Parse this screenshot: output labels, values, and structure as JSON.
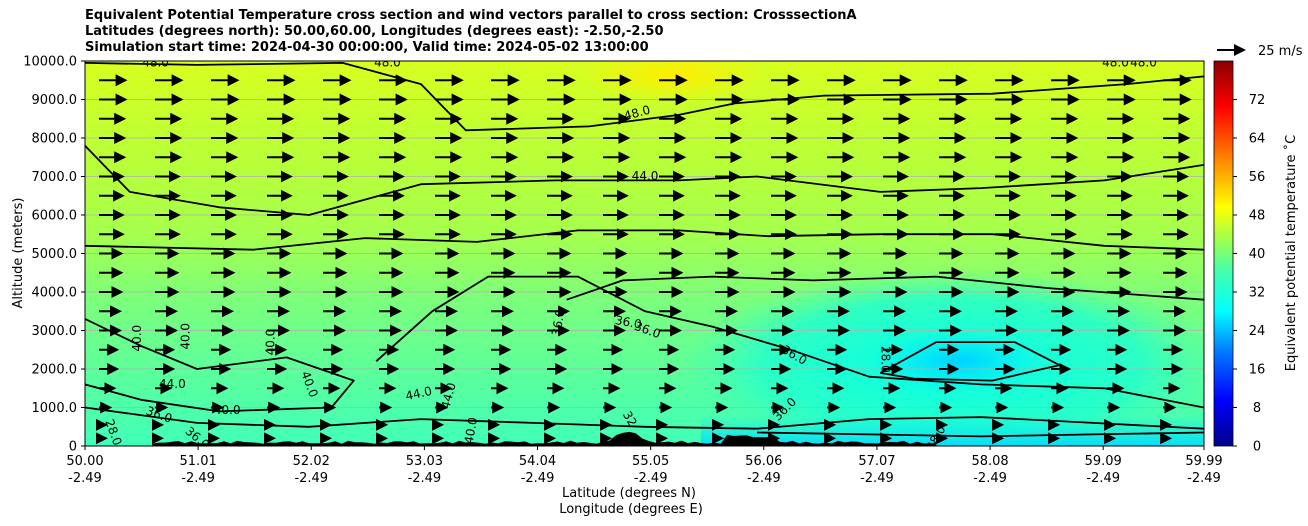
{
  "chart_data": {
    "type": "contour",
    "title_lines": [
      "Equivalent Potential Temperature cross section and wind vectors parallel to cross section: CrosssectionA",
      "Latitudes (degrees north): 50.00,60.00, Longitudes (degrees east): -2.50,-2.50",
      "Simulation start time: 2024-04-30 00:00:00, Valid time: 2024-05-02 13:00:00"
    ],
    "xlabel_lines": [
      "Latitude (degrees N)",
      "Longitude (degrees E)"
    ],
    "ylabel": "Altitude (meters)",
    "x_ticks": [
      {
        "lat": "50.00",
        "lon": "-2.49",
        "value": 50.0
      },
      {
        "lat": "51.01",
        "lon": "-2.49",
        "value": 51.01
      },
      {
        "lat": "52.02",
        "lon": "-2.49",
        "value": 52.02
      },
      {
        "lat": "53.03",
        "lon": "-2.49",
        "value": 53.03
      },
      {
        "lat": "54.04",
        "lon": "-2.49",
        "value": 54.04
      },
      {
        "lat": "55.05",
        "lon": "-2.49",
        "value": 55.05
      },
      {
        "lat": "56.06",
        "lon": "-2.49",
        "value": 56.06
      },
      {
        "lat": "57.07",
        "lon": "-2.49",
        "value": 57.07
      },
      {
        "lat": "58.08",
        "lon": "-2.49",
        "value": 58.08
      },
      {
        "lat": "59.09",
        "lon": "-2.49",
        "value": 59.09
      },
      {
        "lat": "59.99",
        "lon": "-2.49",
        "value": 59.99
      }
    ],
    "y_ticks": [
      {
        "label": "0",
        "value": 0
      },
      {
        "label": "1000.0",
        "value": 1000
      },
      {
        "label": "2000.0",
        "value": 2000
      },
      {
        "label": "3000.0",
        "value": 3000
      },
      {
        "label": "4000.0",
        "value": 4000
      },
      {
        "label": "5000.0",
        "value": 5000
      },
      {
        "label": "6000.0",
        "value": 6000
      },
      {
        "label": "7000.0",
        "value": 7000
      },
      {
        "label": "8000.0",
        "value": 8000
      },
      {
        "label": "9000.0",
        "value": 9000
      },
      {
        "label": "10000.0",
        "value": 10000
      }
    ],
    "xlim": [
      50.0,
      59.99
    ],
    "ylim": [
      0,
      10000
    ],
    "grid": "horizontal",
    "colorbar": {
      "label": "Equivalent potential temperature $^\\circ$C",
      "label_display": "Equivalent potential temperature ˚C",
      "range": [
        0,
        80
      ],
      "ticks": [
        0,
        8,
        16,
        24,
        32,
        40,
        48,
        56,
        64,
        72
      ]
    },
    "quiver_key": {
      "label": "25 m/s"
    },
    "field_regions": [
      {
        "name": "upper-warm-core",
        "value": 47,
        "x": [
          54.6,
          55.9
        ],
        "y": [
          9300,
          10000
        ]
      },
      {
        "name": "mid-level",
        "value": 42,
        "x": [
          50.0,
          59.99
        ],
        "y": [
          5000,
          9000
        ]
      },
      {
        "name": "lower-cool-region",
        "value": 31,
        "x": [
          55.5,
          59.99
        ],
        "y": [
          0,
          4200
        ]
      },
      {
        "name": "coldest-pocket",
        "value": 27,
        "x": [
          57.2,
          58.4
        ],
        "y": [
          1800,
          2600
        ]
      }
    ],
    "contours": [
      {
        "level": 48.0,
        "points": [
          [
            50.0,
            9950
          ],
          [
            51.0,
            9900
          ],
          [
            52.3,
            9950
          ],
          [
            53.0,
            9400
          ],
          [
            53.4,
            8200
          ],
          [
            54.5,
            8300
          ],
          [
            55.3,
            8600
          ],
          [
            55.8,
            8900
          ],
          [
            56.6,
            9100
          ],
          [
            58.1,
            9150
          ],
          [
            59.3,
            9400
          ],
          [
            59.99,
            9600
          ]
        ]
      },
      {
        "level": 44.0,
        "points": [
          [
            50.0,
            7800
          ],
          [
            50.4,
            6600
          ],
          [
            51.2,
            6200
          ],
          [
            52.0,
            6000
          ],
          [
            53.0,
            6800
          ],
          [
            54.2,
            6900
          ],
          [
            55.3,
            6900
          ],
          [
            56.0,
            7000
          ],
          [
            57.1,
            6600
          ],
          [
            58.0,
            6700
          ],
          [
            59.1,
            6900
          ],
          [
            59.99,
            7300
          ]
        ]
      },
      {
        "level": 44.0,
        "points": [
          [
            50.0,
            5200
          ],
          [
            51.5,
            5100
          ],
          [
            52.5,
            5400
          ],
          [
            53.5,
            5300
          ],
          [
            54.4,
            5600
          ],
          [
            55.3,
            5600
          ],
          [
            56.1,
            5450
          ],
          [
            57.1,
            5500
          ],
          [
            58.1,
            5500
          ],
          [
            59.1,
            5200
          ],
          [
            59.99,
            5100
          ]
        ]
      },
      {
        "level": 40.0,
        "points": [
          [
            50.0,
            3300
          ],
          [
            50.5,
            2600
          ],
          [
            51.0,
            2000
          ],
          [
            51.8,
            2300
          ],
          [
            52.4,
            1700
          ],
          [
            52.2,
            1000
          ],
          [
            51.2,
            900
          ],
          [
            50.5,
            1200
          ],
          [
            50.0,
            1600
          ]
        ]
      },
      {
        "level": 36.0,
        "points": [
          [
            52.6,
            2200
          ],
          [
            53.1,
            3500
          ],
          [
            53.6,
            4400
          ],
          [
            54.4,
            4400
          ],
          [
            55.0,
            3500
          ],
          [
            55.6,
            3100
          ],
          [
            56.3,
            2500
          ],
          [
            57.0,
            1800
          ],
          [
            58.0,
            1600
          ],
          [
            59.1,
            1500
          ],
          [
            59.99,
            1000
          ]
        ]
      },
      {
        "level": 36.0,
        "points": [
          [
            54.3,
            3800
          ],
          [
            54.8,
            4300
          ],
          [
            55.6,
            4400
          ],
          [
            56.5,
            4300
          ],
          [
            57.6,
            4400
          ],
          [
            58.6,
            4100
          ],
          [
            59.99,
            3800
          ]
        ]
      },
      {
        "level": 36.0,
        "points": [
          [
            50.0,
            1000
          ],
          [
            51.0,
            600
          ],
          [
            52.0,
            500
          ],
          [
            53.0,
            700
          ],
          [
            54.0,
            600
          ],
          [
            55.0,
            500
          ],
          [
            56.0,
            450
          ],
          [
            57.0,
            700
          ],
          [
            58.0,
            750
          ],
          [
            59.0,
            600
          ],
          [
            59.99,
            450
          ]
        ]
      },
      {
        "level": 28.0,
        "points": [
          [
            57.1,
            1900
          ],
          [
            57.6,
            2700
          ],
          [
            58.3,
            2700
          ],
          [
            58.7,
            2100
          ],
          [
            58.1,
            1700
          ],
          [
            57.4,
            1750
          ],
          [
            57.1,
            1900
          ]
        ]
      },
      {
        "level": 32.0,
        "points": [
          [
            56.0,
            350
          ],
          [
            57.0,
            300
          ],
          [
            58.0,
            250
          ],
          [
            59.0,
            300
          ],
          [
            59.99,
            350
          ]
        ]
      }
    ],
    "contour_labels": [
      {
        "text": "48.0",
        "x": 50.63,
        "y": 9950,
        "angle": 0
      },
      {
        "text": "48.0",
        "x": 52.7,
        "y": 9950,
        "angle": 0
      },
      {
        "text": "48.0",
        "x": 54.93,
        "y": 8640,
        "angle": -15
      },
      {
        "text": "48.0",
        "x": 59.2,
        "y": 9950,
        "angle": 0
      },
      {
        "text": "48.0",
        "x": 59.45,
        "y": 9950,
        "angle": 0
      },
      {
        "text": "44.0",
        "x": 55.0,
        "y": 7000,
        "angle": 0
      },
      {
        "text": "40.0",
        "x": 50.47,
        "y": 2800,
        "angle": -90
      },
      {
        "text": "40.0",
        "x": 50.9,
        "y": 2850,
        "angle": -90
      },
      {
        "text": "40.0",
        "x": 51.66,
        "y": 2700,
        "angle": -90
      },
      {
        "text": "40.0",
        "x": 52.0,
        "y": 1600,
        "angle": 70
      },
      {
        "text": "44.0",
        "x": 50.78,
        "y": 1600,
        "angle": 0
      },
      {
        "text": "44.0",
        "x": 52.98,
        "y": 1350,
        "angle": -12
      },
      {
        "text": "44.0",
        "x": 53.25,
        "y": 1300,
        "angle": -75
      },
      {
        "text": "40.0",
        "x": 51.27,
        "y": 920,
        "angle": 0
      },
      {
        "text": "36.0",
        "x": 50.66,
        "y": 800,
        "angle": 20
      },
      {
        "text": "28.0",
        "x": 50.25,
        "y": 350,
        "angle": 70
      },
      {
        "text": "36.0",
        "x": 51.0,
        "y": 200,
        "angle": 40
      },
      {
        "text": "36.0",
        "x": 54.23,
        "y": 3200,
        "angle": -80
      },
      {
        "text": "36.0",
        "x": 54.85,
        "y": 3200,
        "angle": 10
      },
      {
        "text": "36.0",
        "x": 55.02,
        "y": 3000,
        "angle": 20
      },
      {
        "text": "36.0",
        "x": 56.33,
        "y": 2350,
        "angle": 30
      },
      {
        "text": "28.0",
        "x": 57.14,
        "y": 2250,
        "angle": 90
      },
      {
        "text": "40.0",
        "x": 53.45,
        "y": 400,
        "angle": -80
      },
      {
        "text": "32",
        "x": 54.86,
        "y": 700,
        "angle": 60
      },
      {
        "text": "36.0",
        "x": 56.25,
        "y": 950,
        "angle": -45
      },
      {
        "text": "28.0",
        "x": 57.6,
        "y": 200,
        "angle": -60
      }
    ],
    "wind_vectors": {
      "rows_y": [
        200,
        550,
        1000,
        1500,
        2000,
        2500,
        3000,
        3500,
        4000,
        4500,
        5000,
        5500,
        6000,
        6500,
        7000,
        7500,
        8000,
        8500,
        9000,
        9500
      ],
      "direction": "northward",
      "lengths_by_row": [
        0.25,
        0.25,
        0.4,
        0.55,
        0.65,
        0.65,
        0.75,
        0.75,
        0.8,
        0.8,
        0.8,
        0.85,
        0.85,
        0.85,
        0.85,
        0.9,
        0.9,
        0.9,
        0.95,
        0.95
      ]
    }
  }
}
